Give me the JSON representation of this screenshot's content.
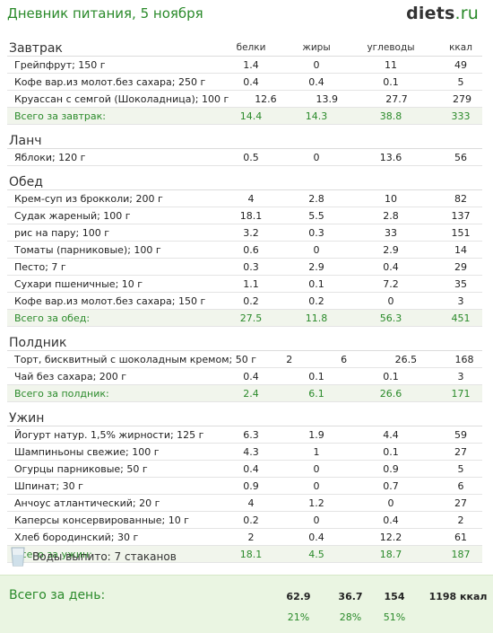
{
  "header": {
    "title": "Дневник питания, 5 ноября",
    "logo_main": "diets",
    "logo_tld": ".ru"
  },
  "columns": {
    "protein": "белки",
    "fat": "жиры",
    "carbs": "углеводы",
    "kcal": "ккал"
  },
  "meals": [
    {
      "name": "Завтрак",
      "items": [
        {
          "name": "Грейпфрут; 150 г",
          "p": "1.4",
          "f": "0",
          "c": "11",
          "k": "49"
        },
        {
          "name": "Кофе вар.из молот.без сахара; 250 г",
          "p": "0.4",
          "f": "0.4",
          "c": "0.1",
          "k": "5"
        },
        {
          "name": "Круассан с семгой (Шоколадница); 100 г",
          "p": "12.6",
          "f": "13.9",
          "c": "27.7",
          "k": "279"
        }
      ],
      "total": {
        "name": "Всего за завтрак:",
        "p": "14.4",
        "f": "14.3",
        "c": "38.8",
        "k": "333"
      }
    },
    {
      "name": "Ланч",
      "items": [
        {
          "name": "Яблоки; 120 г",
          "p": "0.5",
          "f": "0",
          "c": "13.6",
          "k": "56"
        }
      ]
    },
    {
      "name": "Обед",
      "items": [
        {
          "name": "Крем-суп из брокколи; 200 г",
          "p": "4",
          "f": "2.8",
          "c": "10",
          "k": "82"
        },
        {
          "name": "Судак жареный; 100 г",
          "p": "18.1",
          "f": "5.5",
          "c": "2.8",
          "k": "137"
        },
        {
          "name": "рис на пару; 100 г",
          "p": "3.2",
          "f": "0.3",
          "c": "33",
          "k": "151"
        },
        {
          "name": "Томаты (парниковые); 100 г",
          "p": "0.6",
          "f": "0",
          "c": "2.9",
          "k": "14"
        },
        {
          "name": "Песто; 7 г",
          "p": "0.3",
          "f": "2.9",
          "c": "0.4",
          "k": "29"
        },
        {
          "name": "Сухари пшеничные; 10 г",
          "p": "1.1",
          "f": "0.1",
          "c": "7.2",
          "k": "35"
        },
        {
          "name": "Кофе вар.из молот.без сахара; 150 г",
          "p": "0.2",
          "f": "0.2",
          "c": "0",
          "k": "3"
        }
      ],
      "total": {
        "name": "Всего за обед:",
        "p": "27.5",
        "f": "11.8",
        "c": "56.3",
        "k": "451"
      }
    },
    {
      "name": "Полдник",
      "items": [
        {
          "name": "Торт, бисквитный с шоколадным кремом; 50 г",
          "p": "2",
          "f": "6",
          "c": "26.5",
          "k": "168"
        },
        {
          "name": "Чай без сахара; 200 г",
          "p": "0.4",
          "f": "0.1",
          "c": "0.1",
          "k": "3"
        }
      ],
      "total": {
        "name": "Всего за полдник:",
        "p": "2.4",
        "f": "6.1",
        "c": "26.6",
        "k": "171"
      }
    },
    {
      "name": "Ужин",
      "items": [
        {
          "name": "Йогурт натур. 1,5% жирности; 125 г",
          "p": "6.3",
          "f": "1.9",
          "c": "4.4",
          "k": "59"
        },
        {
          "name": "Шампиньоны свежие; 100 г",
          "p": "4.3",
          "f": "1",
          "c": "0.1",
          "k": "27"
        },
        {
          "name": "Огурцы парниковые; 50 г",
          "p": "0.4",
          "f": "0",
          "c": "0.9",
          "k": "5"
        },
        {
          "name": "Шпинат; 30 г",
          "p": "0.9",
          "f": "0",
          "c": "0.7",
          "k": "6"
        },
        {
          "name": "Анчоус атлантический; 20 г",
          "p": "4",
          "f": "1.2",
          "c": "0",
          "k": "27"
        },
        {
          "name": "Каперсы консервированные; 10 г",
          "p": "0.2",
          "f": "0",
          "c": "0.4",
          "k": "2"
        },
        {
          "name": "Хлеб бородинский; 30 г",
          "p": "2",
          "f": "0.4",
          "c": "12.2",
          "k": "61"
        }
      ],
      "total": {
        "name": "Всего за ужин:",
        "p": "18.1",
        "f": "4.5",
        "c": "18.7",
        "k": "187"
      }
    }
  ],
  "water": {
    "text": "Воды выпито: 7 стаканов",
    "icon": "glass-icon"
  },
  "day_total": {
    "label": "Всего за день:",
    "protein": "62.9",
    "fat": "36.7",
    "carbs": "154",
    "kcal": "1198 ккал",
    "protein_pct": "21%",
    "fat_pct": "28%",
    "carbs_pct": "51%"
  },
  "colors": {
    "accent": "#2a8a2a",
    "total_bg": "#f1f5ec",
    "day_bg": "#eaf5e2"
  }
}
